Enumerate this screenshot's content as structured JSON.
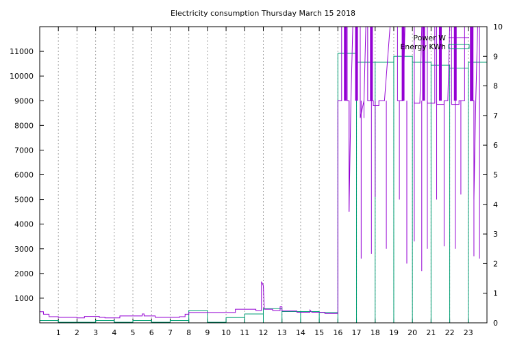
{
  "chart_data": {
    "type": "line",
    "title": "Electricity consumption Thursday March 15 2018",
    "xlabel": "",
    "ylabel": "",
    "y2label": "",
    "xlim": [
      0,
      24
    ],
    "ylim": [
      0,
      12000
    ],
    "y2lim": [
      0,
      10
    ],
    "grid": true,
    "legend_position": "top-right",
    "x_ticks": [
      1,
      2,
      3,
      4,
      5,
      6,
      7,
      8,
      9,
      10,
      11,
      12,
      13,
      14,
      15,
      16,
      17,
      18,
      19,
      20,
      21,
      22,
      23
    ],
    "y_ticks": [
      1000,
      2000,
      3000,
      4000,
      5000,
      6000,
      7000,
      8000,
      9000,
      10000,
      11000
    ],
    "y2_ticks": [
      0,
      1,
      2,
      3,
      4,
      5,
      6,
      7,
      8,
      9,
      10
    ],
    "colors": {
      "power": "#9400d3",
      "energy": "#009e73"
    },
    "series": [
      {
        "name": "Power W",
        "axis": "y",
        "style": "line",
        "points": [
          [
            0,
            450
          ],
          [
            0.2,
            450
          ],
          [
            0.2,
            350
          ],
          [
            0.5,
            350
          ],
          [
            0.5,
            250
          ],
          [
            1,
            250
          ],
          [
            1,
            220
          ],
          [
            2,
            220
          ],
          [
            2,
            200
          ],
          [
            2.4,
            200
          ],
          [
            2.4,
            260
          ],
          [
            3.2,
            260
          ],
          [
            3.2,
            220
          ],
          [
            3.5,
            220
          ],
          [
            3.5,
            200
          ],
          [
            4.3,
            200
          ],
          [
            4.3,
            280
          ],
          [
            5.5,
            280
          ],
          [
            5.5,
            360
          ],
          [
            5.6,
            360
          ],
          [
            5.6,
            280
          ],
          [
            6.2,
            280
          ],
          [
            6.2,
            220
          ],
          [
            7.5,
            220
          ],
          [
            7.5,
            250
          ],
          [
            7.8,
            250
          ],
          [
            7.8,
            350
          ],
          [
            8,
            350
          ],
          [
            8,
            420
          ],
          [
            10.5,
            420
          ],
          [
            10.5,
            550
          ],
          [
            11.6,
            550
          ],
          [
            11.6,
            500
          ],
          [
            11.9,
            500
          ],
          [
            11.9,
            1650
          ],
          [
            11.95,
            1600
          ],
          [
            12,
            1500
          ],
          [
            12.05,
            550
          ],
          [
            12.5,
            550
          ],
          [
            12.5,
            500
          ],
          [
            12.9,
            500
          ],
          [
            12.9,
            650
          ],
          [
            13,
            650
          ],
          [
            13,
            480
          ],
          [
            13.8,
            480
          ],
          [
            13.8,
            430
          ],
          [
            14.5,
            430
          ],
          [
            14.5,
            520
          ],
          [
            14.6,
            430
          ],
          [
            15.3,
            430
          ],
          [
            15.3,
            380
          ],
          [
            16,
            380
          ],
          [
            16,
            9000
          ],
          [
            16.2,
            9000
          ],
          [
            16.2,
            12000
          ],
          [
            16.5,
            12000
          ],
          [
            16.5,
            9000
          ],
          [
            16.6,
            9000
          ],
          [
            16.6,
            4500
          ],
          [
            16.7,
            9000
          ],
          [
            16.8,
            12000
          ],
          [
            17.2,
            12000
          ],
          [
            17.2,
            8300
          ],
          [
            17.4,
            9000
          ],
          [
            17.5,
            12000
          ],
          [
            17.6,
            12000
          ],
          [
            17.6,
            9000
          ],
          [
            17.9,
            9000
          ],
          [
            17.9,
            8800
          ],
          [
            18.2,
            8800
          ],
          [
            18.2,
            9000
          ],
          [
            18.5,
            9000
          ],
          [
            18.8,
            12000
          ],
          [
            19.2,
            12000
          ],
          [
            19.2,
            9000
          ],
          [
            19.5,
            9000
          ],
          [
            19.6,
            12000
          ],
          [
            20.1,
            12000
          ],
          [
            20.1,
            8900
          ],
          [
            20.4,
            8900
          ],
          [
            20.5,
            12000
          ],
          [
            20.8,
            12000
          ],
          [
            20.8,
            8900
          ],
          [
            21.2,
            8900
          ],
          [
            21.2,
            12000
          ],
          [
            21.3,
            12000
          ],
          [
            21.3,
            8850
          ],
          [
            21.7,
            8850
          ],
          [
            21.7,
            9000
          ],
          [
            21.9,
            9000
          ],
          [
            22.0,
            12000
          ],
          [
            22.1,
            12000
          ],
          [
            22.1,
            8850
          ],
          [
            22.5,
            8850
          ],
          [
            22.5,
            9000
          ],
          [
            22.8,
            9000
          ],
          [
            22.8,
            12000
          ],
          [
            23.1,
            12000
          ],
          [
            23.1,
            9000
          ],
          [
            23.3,
            9000
          ],
          [
            23.3,
            5000
          ],
          [
            23.4,
            9000
          ],
          [
            23.5,
            12000
          ],
          [
            23.6,
            12000
          ],
          [
            23.6,
            9000
          ]
        ],
        "spikes_full": [
          16.4,
          17.0,
          17.8,
          19.5,
          20.6,
          21.5,
          22.3,
          23.2
        ],
        "dips": [
          [
            16.6,
            4500
          ],
          [
            17.25,
            2600
          ],
          [
            17.4,
            8300
          ],
          [
            17.8,
            2800
          ],
          [
            18.0,
            5100
          ],
          [
            18.6,
            3000
          ],
          [
            19.3,
            5000
          ],
          [
            19.7,
            2400
          ],
          [
            20.1,
            3300
          ],
          [
            20.5,
            2100
          ],
          [
            20.8,
            3000
          ],
          [
            21.3,
            5000
          ],
          [
            21.7,
            3100
          ],
          [
            22.3,
            3000
          ],
          [
            22.6,
            5200
          ],
          [
            23.3,
            2700
          ],
          [
            23.6,
            2600
          ]
        ]
      },
      {
        "name": "Energy KWh",
        "axis": "y2",
        "style": "histeps",
        "values": [
          0.08,
          0.02,
          0.02,
          0.08,
          0.02,
          0.08,
          0.02,
          0.08,
          0.42,
          0.02,
          0.18,
          0.3,
          0.48,
          0.38,
          0.38,
          0.35,
          9.1,
          8.8,
          8.8,
          9.0,
          8.8,
          8.7,
          8.6,
          8.8
        ]
      }
    ]
  }
}
